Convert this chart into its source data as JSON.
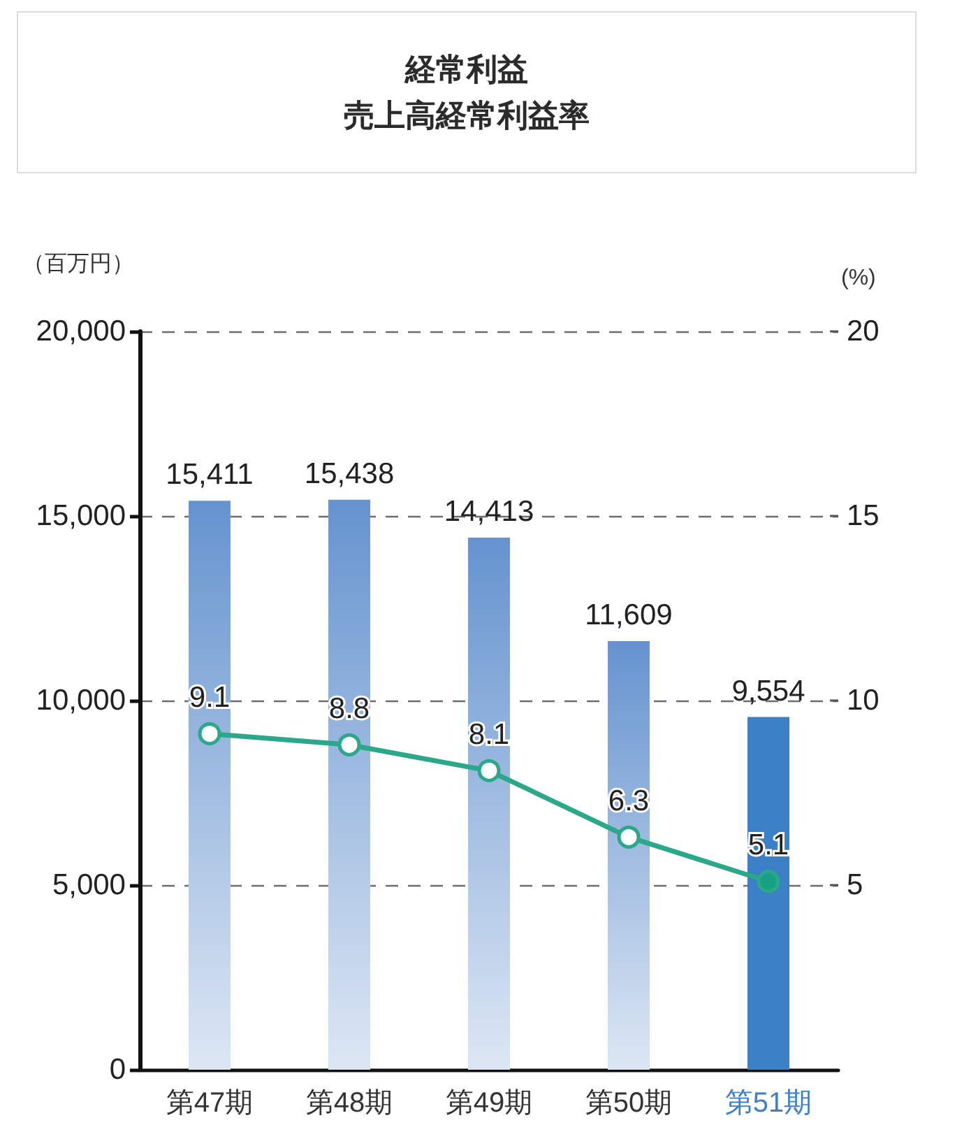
{
  "chart_data": {
    "type": "bar",
    "title": "経常利益",
    "subtitle": "売上高経常利益率",
    "ylabel": "（百万円）",
    "y2label": "(%)",
    "categories": [
      "第47期",
      "第48期",
      "第49期",
      "第50期",
      "第51期"
    ],
    "series": [
      {
        "colors": [
          "#6593cf",
          "#6593cf",
          "#6593cf",
          "#6593cf",
          "#3b7fc4"
        ],
        "values": [
          15411,
          15438,
          14413,
          11609,
          9554
        ],
        "value_labels": [
          "15,411",
          "15,438",
          "14,413",
          "11,609",
          "9,554"
        ]
      },
      {
        "type": "line",
        "axis": "y2",
        "color": "#2aa889",
        "colors": [
          "#ffffff",
          "#ffffff",
          "#ffffff",
          "#ffffff",
          "#17a084"
        ],
        "values": [
          9.1,
          8.8,
          8.1,
          6.3,
          5.1
        ],
        "value_labels": [
          "9.1",
          "8.8",
          "8.1",
          "6.3",
          "5.1"
        ]
      }
    ],
    "ylim": [
      0,
      20000
    ],
    "yticks": [
      0,
      {
        "value": 5000,
        "label": "5,000"
      },
      {
        "value": 10000,
        "label": "10,000"
      },
      {
        "value": 15000,
        "label": "15,000"
      },
      {
        "value": 20000,
        "label": "20,000"
      }
    ],
    "y2lim": [
      0,
      20
    ],
    "y2ticks": [
      5,
      10,
      15,
      20
    ],
    "grid": "y",
    "marker": "circle",
    "line_style": "solid"
  }
}
